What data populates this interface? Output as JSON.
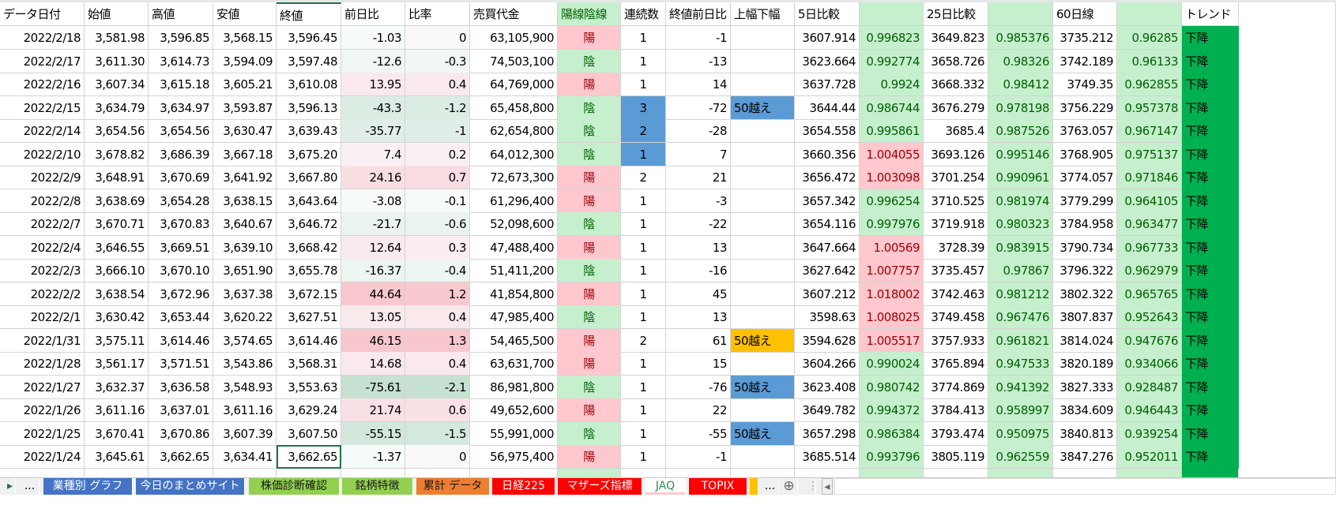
{
  "colors": {
    "yang_bg": "#ffc7ce",
    "yang_fg": "#9c0006",
    "yin_bg": "#c6efce",
    "yin_fg": "#006100",
    "blue": "#5b9bd5",
    "orange": "#ffc000",
    "trend": "#00b050"
  },
  "headers": [
    "データ日付",
    "始値",
    "高値",
    "安値",
    "終値",
    "前日比",
    "比率",
    "売買代金",
    "陽線陰線",
    "連続数",
    "終値前日比",
    "上幅下幅",
    "5日比較",
    "",
    "25日比較",
    "",
    "60日線",
    "",
    "トレンド"
  ],
  "rows": [
    [
      "2022/2/18",
      "3,581.98",
      "3,596.85",
      "3,568.15",
      "3,596.45",
      -1.03,
      0,
      "63,105,900",
      "陽",
      1,
      -1,
      "",
      "3607.914",
      0.996823,
      "3649.823",
      0.985376,
      "3735.212",
      0.96285,
      "下降"
    ],
    [
      "2022/2/17",
      "3,611.30",
      "3,614.73",
      "3,594.09",
      "3,597.48",
      -12.6,
      -0.3,
      "74,503,100",
      "陰",
      1,
      -13,
      "",
      "3623.664",
      0.992774,
      "3658.726",
      0.98326,
      "3742.189",
      0.96133,
      "下降"
    ],
    [
      "2022/2/16",
      "3,607.34",
      "3,615.18",
      "3,605.21",
      "3,610.08",
      13.95,
      0.4,
      "64,769,000",
      "陽",
      1,
      14,
      "",
      "3637.728",
      0.9924,
      "3668.332",
      0.98412,
      "3749.35",
      0.962855,
      "下降"
    ],
    [
      "2022/2/15",
      "3,634.79",
      "3,634.97",
      "3,593.87",
      "3,596.13",
      -43.3,
      -1.2,
      "65,458,800",
      "陰",
      3,
      -72,
      "50越え",
      "3644.44",
      0.986744,
      "3676.279",
      0.978198,
      "3756.229",
      0.957378,
      "下降"
    ],
    [
      "2022/2/14",
      "3,654.56",
      "3,654.56",
      "3,630.47",
      "3,639.43",
      -35.77,
      -1,
      "62,654,800",
      "陰",
      2,
      -28,
      "",
      "3654.558",
      0.995861,
      "3685.4",
      0.987526,
      "3763.057",
      0.967147,
      "下降"
    ],
    [
      "2022/2/10",
      "3,678.82",
      "3,686.39",
      "3,667.18",
      "3,675.20",
      7.4,
      0.2,
      "64,012,300",
      "陰",
      1,
      7,
      "",
      "3660.356",
      1.004055,
      "3693.126",
      0.995146,
      "3768.905",
      0.975137,
      "下降"
    ],
    [
      "2022/2/9",
      "3,648.91",
      "3,670.69",
      "3,641.92",
      "3,667.80",
      24.16,
      0.7,
      "72,673,300",
      "陽",
      2,
      21,
      "",
      "3656.472",
      1.003098,
      "3701.254",
      0.990961,
      "3774.057",
      0.971846,
      "下降"
    ],
    [
      "2022/2/8",
      "3,638.69",
      "3,654.28",
      "3,638.15",
      "3,643.64",
      -3.08,
      -0.1,
      "61,296,400",
      "陽",
      1,
      -3,
      "",
      "3657.342",
      0.996254,
      "3710.525",
      0.981974,
      "3779.299",
      0.964105,
      "下降"
    ],
    [
      "2022/2/7",
      "3,670.71",
      "3,670.83",
      "3,640.67",
      "3,646.72",
      -21.7,
      -0.6,
      "52,098,600",
      "陰",
      1,
      -22,
      "",
      "3654.116",
      0.997976,
      "3719.918",
      0.980323,
      "3784.958",
      0.963477,
      "下降"
    ],
    [
      "2022/2/4",
      "3,646.55",
      "3,669.51",
      "3,639.10",
      "3,668.42",
      12.64,
      0.3,
      "47,488,400",
      "陽",
      1,
      13,
      "",
      "3647.664",
      1.00569,
      "3728.39",
      0.983915,
      "3790.734",
      0.967733,
      "下降"
    ],
    [
      "2022/2/3",
      "3,666.10",
      "3,670.10",
      "3,651.90",
      "3,655.78",
      -16.37,
      -0.4,
      "51,411,200",
      "陰",
      1,
      -16,
      "",
      "3627.642",
      1.007757,
      "3735.457",
      0.97867,
      "3796.322",
      0.962979,
      "下降"
    ],
    [
      "2022/2/2",
      "3,638.54",
      "3,672.96",
      "3,637.38",
      "3,672.15",
      44.64,
      1.2,
      "41,854,800",
      "陽",
      1,
      45,
      "",
      "3607.212",
      1.018002,
      "3742.463",
      0.981212,
      "3802.322",
      0.965765,
      "下降"
    ],
    [
      "2022/2/1",
      "3,630.42",
      "3,653.44",
      "3,620.22",
      "3,627.51",
      13.05,
      0.4,
      "47,985,400",
      "陰",
      1,
      13,
      "",
      "3598.63",
      1.008025,
      "3749.458",
      0.967476,
      "3807.837",
      0.952643,
      "下降"
    ],
    [
      "2022/1/31",
      "3,575.11",
      "3,614.46",
      "3,574.65",
      "3,614.46",
      46.15,
      1.3,
      "54,465,500",
      "陽",
      2,
      61,
      "50越え",
      "3594.628",
      1.005517,
      "3757.933",
      0.961821,
      "3814.024",
      0.947676,
      "下降"
    ],
    [
      "2022/1/28",
      "3,561.17",
      "3,571.51",
      "3,543.86",
      "3,568.31",
      14.68,
      0.4,
      "63,631,700",
      "陽",
      1,
      15,
      "",
      "3604.266",
      0.990024,
      "3765.894",
      0.947533,
      "3820.189",
      0.934066,
      "下降"
    ],
    [
      "2022/1/27",
      "3,632.37",
      "3,636.58",
      "3,548.93",
      "3,553.63",
      -75.61,
      -2.1,
      "86,981,800",
      "陰",
      1,
      -76,
      "50越え",
      "3623.408",
      0.980742,
      "3774.869",
      0.941392,
      "3827.333",
      0.928487,
      "下降"
    ],
    [
      "2022/1/26",
      "3,611.16",
      "3,637.01",
      "3,611.16",
      "3,629.24",
      21.74,
      0.6,
      "49,652,600",
      "陽",
      1,
      22,
      "",
      "3649.782",
      0.994372,
      "3784.413",
      0.958997,
      "3834.609",
      0.946443,
      "下降"
    ],
    [
      "2022/1/25",
      "3,670.41",
      "3,670.86",
      "3,607.39",
      "3,607.50",
      -55.15,
      -1.5,
      "55,991,000",
      "陰",
      1,
      -55,
      "50越え",
      "3657.298",
      0.986384,
      "3793.474",
      0.950975,
      "3840.813",
      0.939254,
      "下降"
    ],
    [
      "2022/1/24",
      "3,645.61",
      "3,662.65",
      "3,634.41",
      "3,662.65",
      -1.37,
      0,
      "56,975,400",
      "陽",
      1,
      -1,
      "",
      "3685.514",
      0.993796,
      "3805.119",
      0.962559,
      "3847.276",
      0.952011,
      "下降"
    ]
  ],
  "tabs": {
    "nav_next": "▸",
    "nav_more": "...",
    "items": [
      {
        "label": "業種別 グラフ",
        "bg": "#4472c4",
        "fg": "#ffffff"
      },
      {
        "label": "今日のまとめサイト",
        "bg": "#4472c4",
        "fg": "#ffffff"
      },
      {
        "label": "株価診断確認",
        "bg": "#92d050",
        "fg": "#1a1a1a"
      },
      {
        "label": "銘柄特徴",
        "bg": "#92d050",
        "fg": "#1a1a1a"
      },
      {
        "label": "累計 データ",
        "bg": "#ed7d31",
        "fg": "#1a1a1a"
      },
      {
        "label": "日経225",
        "bg": "#ff0000",
        "fg": "#ffffff"
      },
      {
        "label": "マザーズ指標",
        "bg": "#ff0000",
        "fg": "#ffffff"
      },
      {
        "label": "JAQ",
        "bg": "#ffffff",
        "fg": "#2e8b57",
        "active": true
      },
      {
        "label": "TOPIX",
        "bg": "#ff0000",
        "fg": "#ffffff"
      },
      {
        "label": "",
        "bg": "#ffc000",
        "fg": "#000000"
      }
    ],
    "more": "...",
    "add": "⊕"
  }
}
